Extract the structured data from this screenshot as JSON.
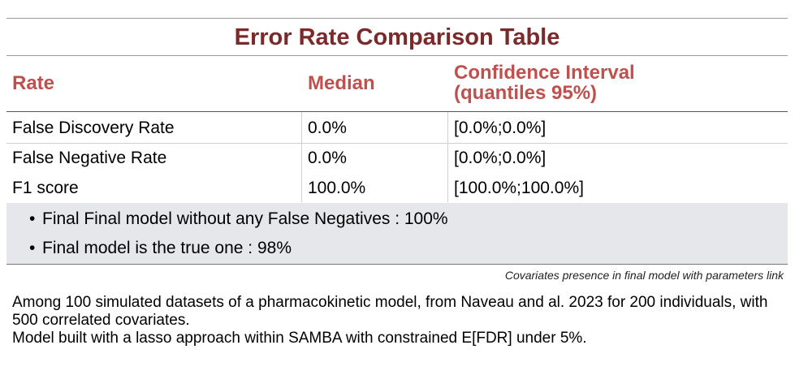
{
  "title": "Error Rate Comparison Table",
  "columns": {
    "rate": "Rate",
    "median": "Median",
    "ci_line1": "Confidence Interval",
    "ci_line2": "(quantiles 95%)"
  },
  "rows": [
    {
      "rate": "False Discovery Rate",
      "median": "0.0%",
      "ci": "[0.0%;0.0%]"
    },
    {
      "rate": "False Negative Rate",
      "median": "0.0%",
      "ci": "[0.0%;0.0%]"
    },
    {
      "rate": "F1 score",
      "median": "100.0%",
      "ci": "[100.0%;100.0%]"
    }
  ],
  "notes": [
    "Final Final model without any False Negatives : 100%",
    "Final model is the true one : 98%"
  ],
  "caption": "Covariates presence in final model with parameters link",
  "footer": {
    "line1": "Among 100 simulated datasets of a pharmacokinetic model, from Naveau and al. 2023 for 200 individuals, with 500 correlated covariates.",
    "line2": "Model built with a lasso approach within SAMBA with constrained E[FDR] under 5%."
  },
  "colors": {
    "title": "#7a2a2a",
    "header": "#c0504d",
    "notes_bg": "#e6e7eb"
  }
}
